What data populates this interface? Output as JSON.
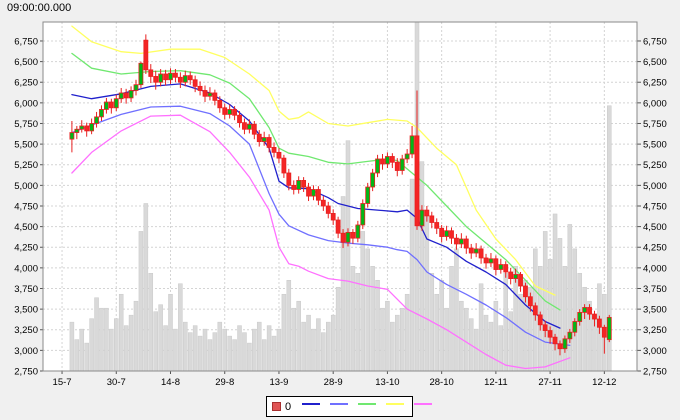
{
  "window": {
    "title_clock": "09:00:00.000",
    "background": "#f0f0f0"
  },
  "legend": {
    "series_label": "0",
    "marker_fill": "#e05555",
    "marker_border": "#a83030",
    "line_colors": [
      "#2020cc",
      "#7070ff",
      "#70e870",
      "#ffff60",
      "#ff70ff"
    ]
  },
  "chart_data": {
    "type": "candlestick",
    "title": "09:00:00.000",
    "x_axis_label": "",
    "y_axis_label": "",
    "y_axis": {
      "min": 2750,
      "max_visible_tick": 6750,
      "top_of_plot_value": 6980,
      "tick_step": 250,
      "sides": [
        "left",
        "right"
      ]
    },
    "y_ticks": [
      2750,
      3000,
      3250,
      3500,
      3750,
      4000,
      4250,
      4500,
      4750,
      5000,
      5250,
      5500,
      5750,
      6000,
      6250,
      6500,
      6750
    ],
    "x_ticks": [
      {
        "label": "15-7",
        "k": -2
      },
      {
        "label": "30-7",
        "k": 9
      },
      {
        "label": "14-8",
        "k": 20
      },
      {
        "label": "29-8",
        "k": 31
      },
      {
        "label": "13-9",
        "k": 42
      },
      {
        "label": "28-9",
        "k": 53
      },
      {
        "label": "13-10",
        "k": 64
      },
      {
        "label": "28-10",
        "k": 75
      },
      {
        "label": "12-11",
        "k": 86
      },
      {
        "label": "27-11",
        "k": 97
      },
      {
        "label": "12-12",
        "k": 108
      }
    ],
    "grid": true,
    "volume_axis_hidden": true,
    "colors": {
      "up_body": "#00b818",
      "down_body": "#f42525",
      "body_border": "#e82020",
      "wick": "#e82020",
      "volume_bar": "#d9d9d9",
      "volume_edge": "#c9c9c9",
      "grid": "#d4d4d4",
      "plot_bg": "#ffffff",
      "plot_border": "#8a8a8a",
      "axis_text": "#000000"
    },
    "candles_note": "each candle = [open, high, low, close, volume_pct_of_max]",
    "candles": [
      [
        5560,
        5780,
        5400,
        5640,
        14
      ],
      [
        5640,
        5720,
        5560,
        5680,
        9
      ],
      [
        5680,
        5790,
        5640,
        5720,
        12
      ],
      [
        5720,
        5760,
        5590,
        5660,
        8
      ],
      [
        5660,
        5810,
        5620,
        5750,
        15
      ],
      [
        5750,
        5890,
        5700,
        5830,
        21
      ],
      [
        5830,
        5970,
        5780,
        5920,
        18
      ],
      [
        5920,
        6060,
        5870,
        6010,
        18
      ],
      [
        6010,
        6050,
        5870,
        5940,
        12
      ],
      [
        5940,
        6100,
        5900,
        6050,
        15
      ],
      [
        6050,
        6180,
        6000,
        6120,
        22
      ],
      [
        6120,
        6170,
        5990,
        6060,
        13
      ],
      [
        6060,
        6200,
        6010,
        6150,
        16
      ],
      [
        6150,
        6280,
        6090,
        6220,
        20
      ],
      [
        6220,
        6500,
        6180,
        6480,
        40
      ],
      [
        6760,
        6830,
        6350,
        6400,
        48
      ],
      [
        6400,
        6470,
        6240,
        6320,
        28
      ],
      [
        6320,
        6390,
        6160,
        6250,
        17
      ],
      [
        6250,
        6410,
        6200,
        6350,
        19
      ],
      [
        6350,
        6400,
        6210,
        6280,
        13
      ],
      [
        6280,
        6420,
        6230,
        6360,
        22
      ],
      [
        6360,
        6410,
        6250,
        6310,
        12
      ],
      [
        6310,
        6370,
        6180,
        6250,
        25
      ],
      [
        6250,
        6390,
        6200,
        6330,
        14
      ],
      [
        6330,
        6380,
        6220,
        6280,
        11
      ],
      [
        6280,
        6330,
        6130,
        6200,
        13
      ],
      [
        6200,
        6260,
        6090,
        6150,
        10
      ],
      [
        6150,
        6210,
        6010,
        6080,
        12
      ],
      [
        6080,
        6190,
        6030,
        6120,
        9
      ],
      [
        6120,
        6160,
        5970,
        6030,
        11
      ],
      [
        6030,
        6080,
        5880,
        5940,
        14
      ],
      [
        5940,
        5990,
        5800,
        5860,
        12
      ],
      [
        5860,
        5980,
        5810,
        5920,
        10
      ],
      [
        5920,
        5960,
        5790,
        5850,
        9
      ],
      [
        5850,
        5900,
        5700,
        5760,
        13
      ],
      [
        5760,
        5810,
        5620,
        5680,
        11
      ],
      [
        5680,
        5800,
        5630,
        5740,
        8
      ],
      [
        5740,
        5780,
        5560,
        5620,
        12
      ],
      [
        5620,
        5670,
        5470,
        5530,
        14
      ],
      [
        5530,
        5650,
        5480,
        5580,
        9
      ],
      [
        5580,
        5620,
        5400,
        5460,
        13
      ],
      [
        5460,
        5520,
        5340,
        5400,
        10
      ],
      [
        5400,
        5450,
        5270,
        5330,
        12
      ],
      [
        5330,
        5370,
        5090,
        5150,
        22
      ],
      [
        5150,
        5200,
        4940,
        5000,
        26
      ],
      [
        5000,
        5060,
        4890,
        4950,
        18
      ],
      [
        4950,
        5110,
        4900,
        5060,
        20
      ],
      [
        5060,
        5100,
        4920,
        4980,
        14
      ],
      [
        4980,
        5030,
        4810,
        4870,
        16
      ],
      [
        4870,
        5000,
        4820,
        4950,
        12
      ],
      [
        4950,
        4990,
        4760,
        4820,
        15
      ],
      [
        4820,
        4870,
        4690,
        4750,
        11
      ],
      [
        4750,
        4800,
        4600,
        4660,
        14
      ],
      [
        4660,
        4710,
        4520,
        4580,
        16
      ],
      [
        4580,
        4620,
        4360,
        4420,
        24
      ],
      [
        4420,
        4470,
        4240,
        4310,
        50
      ],
      [
        4310,
        4480,
        4260,
        4430,
        66
      ],
      [
        4430,
        4470,
        4290,
        4360,
        30
      ],
      [
        4360,
        4570,
        4310,
        4520,
        28
      ],
      [
        4520,
        4830,
        4470,
        4780,
        40
      ],
      [
        4780,
        5030,
        4730,
        4980,
        35
      ],
      [
        4980,
        5200,
        4930,
        5150,
        30
      ],
      [
        5150,
        5370,
        5100,
        5320,
        26
      ],
      [
        5320,
        5380,
        5190,
        5260,
        18
      ],
      [
        5260,
        5400,
        5210,
        5350,
        20
      ],
      [
        5350,
        5390,
        5210,
        5280,
        14
      ],
      [
        5280,
        5330,
        5110,
        5180,
        16
      ],
      [
        5180,
        5370,
        5130,
        5320,
        18
      ],
      [
        5320,
        5440,
        5270,
        5380,
        22
      ],
      [
        5380,
        5720,
        5330,
        5600,
        55
      ],
      [
        5600,
        6150,
        4460,
        4510,
        100
      ],
      [
        4510,
        4760,
        4450,
        4700,
        60
      ],
      [
        4700,
        4750,
        4560,
        4630,
        45
      ],
      [
        4630,
        4680,
        4480,
        4550,
        28
      ],
      [
        4550,
        4600,
        4410,
        4480,
        22
      ],
      [
        4480,
        4520,
        4310,
        4380,
        26
      ],
      [
        4380,
        4510,
        4330,
        4450,
        18
      ],
      [
        4450,
        4490,
        4290,
        4360,
        30
      ],
      [
        4360,
        4410,
        4220,
        4290,
        35
      ],
      [
        4290,
        4420,
        4240,
        4350,
        20
      ],
      [
        4350,
        4390,
        4170,
        4240,
        18
      ],
      [
        4240,
        4290,
        4110,
        4180,
        15
      ],
      [
        4180,
        4300,
        4130,
        4230,
        12
      ],
      [
        4230,
        4270,
        4050,
        4120,
        25
      ],
      [
        4120,
        4170,
        3990,
        4060,
        16
      ],
      [
        4060,
        4180,
        4010,
        4110,
        14
      ],
      [
        4110,
        4150,
        3910,
        3980,
        20
      ],
      [
        3980,
        4110,
        3930,
        4040,
        13
      ],
      [
        4040,
        4080,
        3880,
        3950,
        28
      ],
      [
        3950,
        4000,
        3800,
        3870,
        17
      ],
      [
        3870,
        3990,
        3820,
        3920,
        30
      ],
      [
        3920,
        3950,
        3710,
        3780,
        22
      ],
      [
        3780,
        3820,
        3580,
        3650,
        26
      ],
      [
        3650,
        3700,
        3470,
        3540,
        24
      ],
      [
        3540,
        3580,
        3360,
        3430,
        35
      ],
      [
        3430,
        3470,
        3240,
        3310,
        30
      ],
      [
        3310,
        3360,
        3160,
        3240,
        40
      ],
      [
        3240,
        3290,
        3080,
        3160,
        32
      ],
      [
        3160,
        3200,
        3000,
        3080,
        45
      ],
      [
        3080,
        3120,
        2940,
        3020,
        38
      ],
      [
        3020,
        3180,
        2970,
        3140,
        30
      ],
      [
        3140,
        3260,
        3090,
        3220,
        42
      ],
      [
        3220,
        3390,
        3170,
        3350,
        35
      ],
      [
        3350,
        3500,
        3300,
        3460,
        28
      ],
      [
        3460,
        3560,
        3380,
        3520,
        24
      ],
      [
        3520,
        3560,
        3370,
        3440,
        20
      ],
      [
        3440,
        3480,
        3290,
        3380,
        16
      ],
      [
        3380,
        3420,
        3200,
        3280,
        25
      ],
      [
        3280,
        3310,
        2960,
        3160,
        22
      ],
      [
        3130,
        3430,
        3100,
        3400,
        76
      ]
    ],
    "bands_note": "overlay lines, points = [candle_index, price]",
    "bands": [
      {
        "name": "middle-band-dark-blue",
        "color": "#2020cc",
        "points": [
          [
            0,
            6100
          ],
          [
            4,
            6050
          ],
          [
            10,
            6110
          ],
          [
            16,
            6200
          ],
          [
            22,
            6230
          ],
          [
            28,
            6120
          ],
          [
            32,
            5980
          ],
          [
            36,
            5780
          ],
          [
            40,
            5450
          ],
          [
            42,
            5050
          ],
          [
            44,
            4970
          ],
          [
            48,
            4960
          ],
          [
            52,
            4850
          ],
          [
            54,
            4780
          ],
          [
            58,
            4720
          ],
          [
            62,
            4700
          ],
          [
            66,
            4680
          ],
          [
            68,
            4700
          ],
          [
            70,
            4600
          ],
          [
            72,
            4350
          ],
          [
            76,
            4250
          ],
          [
            80,
            4080
          ],
          [
            84,
            3950
          ],
          [
            88,
            3800
          ],
          [
            92,
            3550
          ],
          [
            96,
            3350
          ],
          [
            99,
            3270
          ]
        ]
      },
      {
        "name": "lower-mid-band-blue",
        "color": "#7070ff",
        "points": [
          [
            0,
            5640
          ],
          [
            4,
            5730
          ],
          [
            10,
            5860
          ],
          [
            16,
            5950
          ],
          [
            22,
            5960
          ],
          [
            28,
            5870
          ],
          [
            32,
            5720
          ],
          [
            36,
            5500
          ],
          [
            40,
            4900
          ],
          [
            42,
            4650
          ],
          [
            44,
            4510
          ],
          [
            48,
            4400
          ],
          [
            52,
            4330
          ],
          [
            56,
            4300
          ],
          [
            60,
            4280
          ],
          [
            64,
            4250
          ],
          [
            66,
            4220
          ],
          [
            68,
            4200
          ],
          [
            70,
            4100
          ],
          [
            72,
            3950
          ],
          [
            76,
            3800
          ],
          [
            80,
            3680
          ],
          [
            84,
            3550
          ],
          [
            88,
            3400
          ],
          [
            92,
            3220
          ],
          [
            96,
            3100
          ],
          [
            101,
            3060
          ]
        ]
      },
      {
        "name": "upper-mid-band-green",
        "color": "#70e870",
        "points": [
          [
            0,
            6600
          ],
          [
            4,
            6420
          ],
          [
            10,
            6350
          ],
          [
            16,
            6380
          ],
          [
            22,
            6390
          ],
          [
            28,
            6340
          ],
          [
            32,
            6240
          ],
          [
            36,
            6050
          ],
          [
            40,
            5700
          ],
          [
            42,
            5450
          ],
          [
            44,
            5390
          ],
          [
            48,
            5350
          ],
          [
            52,
            5280
          ],
          [
            56,
            5260
          ],
          [
            60,
            5290
          ],
          [
            64,
            5320
          ],
          [
            66,
            5300
          ],
          [
            68,
            5200
          ],
          [
            70,
            5100
          ],
          [
            72,
            5000
          ],
          [
            76,
            4750
          ],
          [
            80,
            4500
          ],
          [
            84,
            4300
          ],
          [
            88,
            4100
          ],
          [
            92,
            3850
          ],
          [
            96,
            3600
          ],
          [
            99,
            3490
          ]
        ]
      },
      {
        "name": "upper-band-yellow",
        "color": "#ffff60",
        "points": [
          [
            0,
            6930
          ],
          [
            4,
            6740
          ],
          [
            10,
            6620
          ],
          [
            14,
            6600
          ],
          [
            20,
            6650
          ],
          [
            26,
            6650
          ],
          [
            31,
            6550
          ],
          [
            36,
            6350
          ],
          [
            40,
            6150
          ],
          [
            42,
            5900
          ],
          [
            44,
            5800
          ],
          [
            46,
            5820
          ],
          [
            48,
            5890
          ],
          [
            52,
            5750
          ],
          [
            56,
            5720
          ],
          [
            60,
            5760
          ],
          [
            64,
            5800
          ],
          [
            68,
            5780
          ],
          [
            70,
            5700
          ],
          [
            74,
            5450
          ],
          [
            78,
            5250
          ],
          [
            82,
            4700
          ],
          [
            86,
            4350
          ],
          [
            90,
            4100
          ],
          [
            94,
            3780
          ],
          [
            98,
            3670
          ]
        ]
      },
      {
        "name": "lower-band-magenta",
        "color": "#ff70ff",
        "points": [
          [
            0,
            5150
          ],
          [
            4,
            5400
          ],
          [
            10,
            5660
          ],
          [
            16,
            5840
          ],
          [
            22,
            5850
          ],
          [
            28,
            5650
          ],
          [
            32,
            5400
          ],
          [
            36,
            5100
          ],
          [
            40,
            4700
          ],
          [
            42,
            4250
          ],
          [
            44,
            4050
          ],
          [
            46,
            4020
          ],
          [
            48,
            3960
          ],
          [
            52,
            3870
          ],
          [
            56,
            3840
          ],
          [
            60,
            3780
          ],
          [
            64,
            3740
          ],
          [
            68,
            3500
          ],
          [
            72,
            3380
          ],
          [
            76,
            3250
          ],
          [
            80,
            3100
          ],
          [
            84,
            2950
          ],
          [
            88,
            2820
          ],
          [
            92,
            2780
          ],
          [
            96,
            2800
          ],
          [
            101,
            2910
          ]
        ]
      }
    ]
  }
}
